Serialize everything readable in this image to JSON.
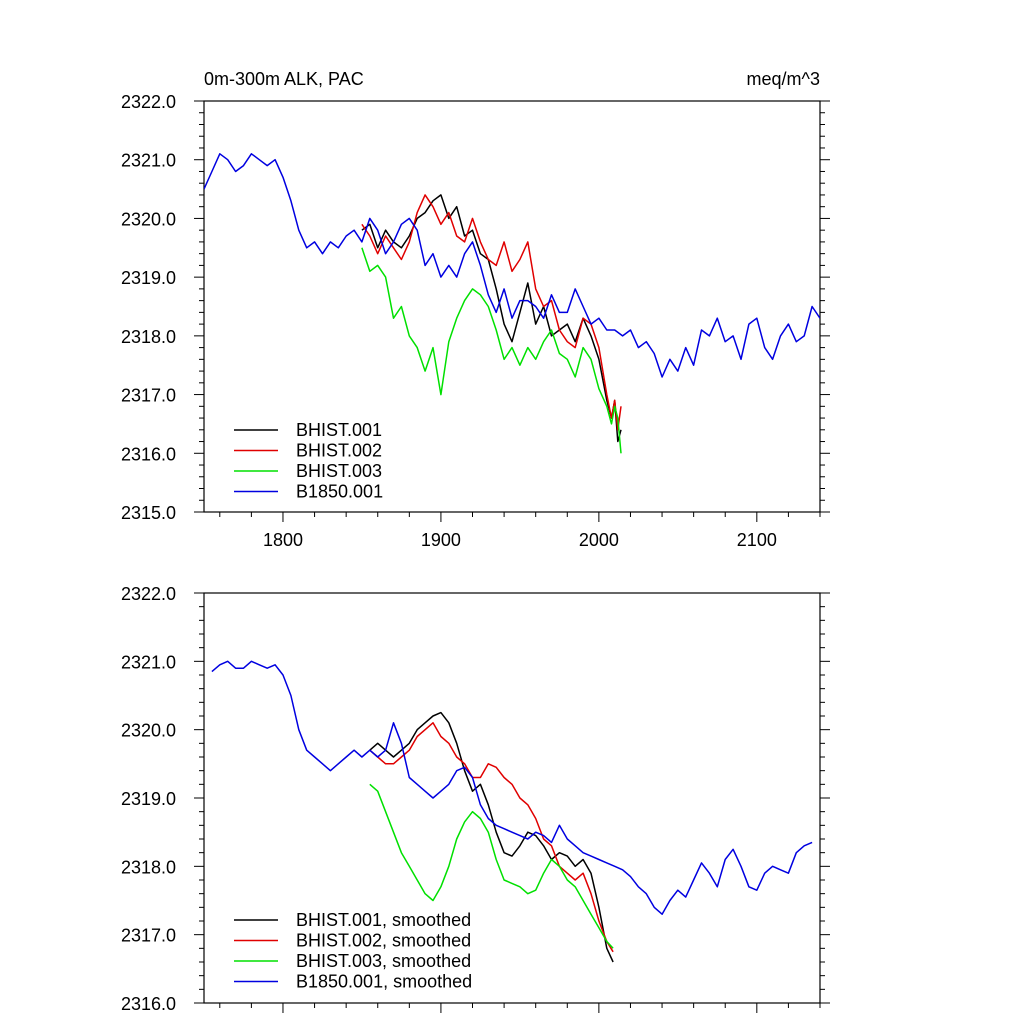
{
  "colors": {
    "black": "#000000",
    "red": "#e00000",
    "green": "#00e000",
    "blue": "#0000e0"
  },
  "chart_data": [
    {
      "type": "line",
      "title": "0m-300m ALK, PAC",
      "units_label": "meq/m^3",
      "xlim": [
        1750,
        2140
      ],
      "ylim": [
        2315,
        2322
      ],
      "x_ticks": [
        1800,
        1900,
        2000,
        2100
      ],
      "x_tick_labels": [
        "1800",
        "1900",
        "2000",
        "2100"
      ],
      "y_ticks": [
        2315,
        2316,
        2317,
        2318,
        2319,
        2320,
        2321,
        2322
      ],
      "y_tick_labels": [
        "2315.0",
        "2316.0",
        "2317.0",
        "2318.0",
        "2319.0",
        "2320.0",
        "2321.0",
        "2322.0"
      ],
      "legend_position": "bottom-left",
      "series": [
        {
          "name": "BHIST.001",
          "color": "#000000",
          "x": [
            1850,
            1855,
            1860,
            1865,
            1870,
            1875,
            1880,
            1885,
            1890,
            1895,
            1900,
            1905,
            1910,
            1915,
            1920,
            1925,
            1930,
            1935,
            1940,
            1945,
            1950,
            1955,
            1960,
            1965,
            1970,
            1975,
            1980,
            1985,
            1990,
            1995,
            2000,
            2005,
            2008,
            2010,
            2012,
            2014
          ],
          "y": [
            2319.8,
            2319.9,
            2319.5,
            2319.8,
            2319.6,
            2319.5,
            2319.7,
            2320.0,
            2320.1,
            2320.3,
            2320.4,
            2320.0,
            2320.2,
            2319.7,
            2319.8,
            2319.4,
            2319.3,
            2318.8,
            2318.2,
            2317.9,
            2318.4,
            2318.9,
            2318.2,
            2318.5,
            2318.0,
            2318.1,
            2318.2,
            2317.9,
            2318.3,
            2318.0,
            2317.6,
            2316.9,
            2316.6,
            2316.9,
            2316.2,
            2316.4
          ]
        },
        {
          "name": "BHIST.002",
          "color": "#e00000",
          "x": [
            1850,
            1855,
            1860,
            1865,
            1870,
            1875,
            1880,
            1885,
            1890,
            1895,
            1900,
            1905,
            1910,
            1915,
            1920,
            1925,
            1930,
            1935,
            1940,
            1945,
            1950,
            1955,
            1960,
            1965,
            1970,
            1975,
            1980,
            1985,
            1990,
            1995,
            2000,
            2005,
            2008,
            2010,
            2012,
            2014
          ],
          "y": [
            2319.9,
            2319.7,
            2319.4,
            2319.7,
            2319.5,
            2319.3,
            2319.6,
            2320.1,
            2320.4,
            2320.2,
            2319.9,
            2320.1,
            2319.7,
            2319.6,
            2320.0,
            2319.6,
            2319.3,
            2319.2,
            2319.6,
            2319.1,
            2319.3,
            2319.6,
            2318.8,
            2318.5,
            2318.6,
            2318.1,
            2317.9,
            2317.8,
            2318.3,
            2318.2,
            2317.8,
            2317.0,
            2316.6,
            2316.9,
            2316.4,
            2316.8
          ]
        },
        {
          "name": "BHIST.003",
          "color": "#00e000",
          "x": [
            1850,
            1855,
            1860,
            1865,
            1870,
            1875,
            1880,
            1885,
            1890,
            1895,
            1900,
            1905,
            1910,
            1915,
            1920,
            1925,
            1930,
            1935,
            1940,
            1945,
            1950,
            1955,
            1960,
            1965,
            1970,
            1975,
            1980,
            1985,
            1990,
            1995,
            2000,
            2005,
            2008,
            2010,
            2012,
            2014
          ],
          "y": [
            2319.5,
            2319.1,
            2319.2,
            2319.0,
            2318.3,
            2318.5,
            2318.0,
            2317.8,
            2317.4,
            2317.8,
            2317.0,
            2317.9,
            2318.3,
            2318.6,
            2318.8,
            2318.7,
            2318.5,
            2318.1,
            2317.6,
            2317.8,
            2317.5,
            2317.8,
            2317.6,
            2317.9,
            2318.1,
            2317.7,
            2317.6,
            2317.3,
            2317.8,
            2317.6,
            2317.1,
            2316.8,
            2316.5,
            2316.8,
            2316.6,
            2316.0
          ]
        },
        {
          "name": "B1850.001",
          "color": "#0000e0",
          "x": [
            1750,
            1755,
            1760,
            1765,
            1770,
            1775,
            1780,
            1785,
            1790,
            1795,
            1800,
            1805,
            1810,
            1815,
            1820,
            1825,
            1830,
            1835,
            1840,
            1845,
            1850,
            1855,
            1860,
            1865,
            1870,
            1875,
            1880,
            1885,
            1890,
            1895,
            1900,
            1905,
            1910,
            1915,
            1920,
            1925,
            1930,
            1935,
            1940,
            1945,
            1950,
            1955,
            1960,
            1965,
            1970,
            1975,
            1980,
            1985,
            1990,
            1995,
            2000,
            2005,
            2010,
            2015,
            2020,
            2025,
            2030,
            2035,
            2040,
            2045,
            2050,
            2055,
            2060,
            2065,
            2070,
            2075,
            2080,
            2085,
            2090,
            2095,
            2100,
            2105,
            2110,
            2115,
            2120,
            2125,
            2130,
            2135,
            2140
          ],
          "y": [
            2320.5,
            2320.8,
            2321.1,
            2321.0,
            2320.8,
            2320.9,
            2321.1,
            2321.0,
            2320.9,
            2321.0,
            2320.7,
            2320.3,
            2319.8,
            2319.5,
            2319.6,
            2319.4,
            2319.6,
            2319.5,
            2319.7,
            2319.8,
            2319.6,
            2320.0,
            2319.8,
            2319.4,
            2319.6,
            2319.9,
            2320.0,
            2319.8,
            2319.2,
            2319.4,
            2319.0,
            2319.2,
            2319.0,
            2319.4,
            2319.6,
            2319.2,
            2318.7,
            2318.4,
            2318.8,
            2318.3,
            2318.6,
            2318.6,
            2318.5,
            2318.3,
            2318.7,
            2318.4,
            2318.4,
            2318.8,
            2318.5,
            2318.2,
            2318.3,
            2318.1,
            2318.1,
            2318.0,
            2318.1,
            2317.8,
            2317.9,
            2317.7,
            2317.3,
            2317.6,
            2317.4,
            2317.8,
            2317.5,
            2318.1,
            2318.0,
            2318.3,
            2317.9,
            2318.0,
            2317.6,
            2318.2,
            2318.3,
            2317.8,
            2317.6,
            2318.0,
            2318.2,
            2317.9,
            2318.0,
            2318.5,
            2318.3
          ]
        }
      ]
    },
    {
      "type": "line",
      "xlim": [
        1750,
        2140
      ],
      "ylim": [
        2316,
        2322
      ],
      "x_ticks": [
        1800,
        1900,
        2000,
        2100
      ],
      "y_ticks": [
        2316,
        2317,
        2318,
        2319,
        2320,
        2321,
        2322
      ],
      "y_tick_labels": [
        "2316.0",
        "2317.0",
        "2318.0",
        "2319.0",
        "2320.0",
        "2321.0",
        "2322.0"
      ],
      "legend_position": "bottom-left",
      "series": [
        {
          "name": "BHIST.001, smoothed",
          "color": "#000000",
          "x": [
            1855,
            1860,
            1865,
            1870,
            1875,
            1880,
            1885,
            1890,
            1895,
            1900,
            1905,
            1910,
            1915,
            1920,
            1925,
            1930,
            1935,
            1940,
            1945,
            1950,
            1955,
            1960,
            1965,
            1970,
            1975,
            1980,
            1985,
            1990,
            1995,
            2000,
            2005,
            2009
          ],
          "y": [
            2319.7,
            2319.8,
            2319.7,
            2319.6,
            2319.7,
            2319.8,
            2320.0,
            2320.1,
            2320.2,
            2320.25,
            2320.1,
            2319.8,
            2319.4,
            2319.1,
            2319.2,
            2318.9,
            2318.5,
            2318.2,
            2318.15,
            2318.3,
            2318.5,
            2318.45,
            2318.3,
            2318.1,
            2318.2,
            2318.15,
            2318.0,
            2318.1,
            2317.9,
            2317.4,
            2316.8,
            2316.6
          ]
        },
        {
          "name": "BHIST.002, smoothed",
          "color": "#e00000",
          "x": [
            1855,
            1860,
            1865,
            1870,
            1875,
            1880,
            1885,
            1890,
            1895,
            1900,
            1905,
            1910,
            1915,
            1920,
            1925,
            1930,
            1935,
            1940,
            1945,
            1950,
            1955,
            1960,
            1965,
            1970,
            1975,
            1980,
            1985,
            1990,
            1995,
            2000,
            2005,
            2009
          ],
          "y": [
            2319.7,
            2319.6,
            2319.5,
            2319.5,
            2319.6,
            2319.7,
            2319.9,
            2320.0,
            2320.1,
            2319.9,
            2319.8,
            2319.6,
            2319.5,
            2319.3,
            2319.3,
            2319.5,
            2319.45,
            2319.3,
            2319.2,
            2319.0,
            2318.9,
            2318.7,
            2318.4,
            2318.3,
            2318.0,
            2317.9,
            2317.8,
            2317.9,
            2317.6,
            2317.2,
            2316.9,
            2316.75
          ]
        },
        {
          "name": "BHIST.003, smoothed",
          "color": "#00e000",
          "x": [
            1855,
            1860,
            1865,
            1870,
            1875,
            1880,
            1885,
            1890,
            1895,
            1900,
            1905,
            1910,
            1915,
            1920,
            1925,
            1930,
            1935,
            1940,
            1945,
            1950,
            1955,
            1960,
            1965,
            1970,
            1975,
            1980,
            1985,
            1990,
            1995,
            2000,
            2005,
            2009
          ],
          "y": [
            2319.2,
            2319.1,
            2318.8,
            2318.5,
            2318.2,
            2318.0,
            2317.8,
            2317.6,
            2317.5,
            2317.7,
            2318.0,
            2318.4,
            2318.65,
            2318.8,
            2318.7,
            2318.5,
            2318.1,
            2317.8,
            2317.75,
            2317.7,
            2317.6,
            2317.65,
            2317.9,
            2318.1,
            2318.0,
            2317.8,
            2317.7,
            2317.5,
            2317.3,
            2317.1,
            2316.9,
            2316.8
          ]
        },
        {
          "name": "B1850.001, smoothed",
          "color": "#0000e0",
          "x": [
            1755,
            1760,
            1765,
            1770,
            1775,
            1780,
            1785,
            1790,
            1795,
            1800,
            1805,
            1810,
            1815,
            1820,
            1825,
            1830,
            1835,
            1840,
            1845,
            1850,
            1855,
            1860,
            1865,
            1870,
            1875,
            1880,
            1885,
            1890,
            1895,
            1900,
            1905,
            1910,
            1915,
            1920,
            1925,
            1930,
            1935,
            1940,
            1945,
            1950,
            1955,
            1960,
            1965,
            1970,
            1975,
            1980,
            1985,
            1990,
            1995,
            2000,
            2005,
            2010,
            2015,
            2020,
            2025,
            2030,
            2035,
            2040,
            2045,
            2050,
            2055,
            2060,
            2065,
            2070,
            2075,
            2080,
            2085,
            2090,
            2095,
            2100,
            2105,
            2110,
            2115,
            2120,
            2125,
            2130,
            2135
          ],
          "y": [
            2320.85,
            2320.95,
            2321.0,
            2320.9,
            2320.9,
            2321.0,
            2320.95,
            2320.9,
            2320.95,
            2320.8,
            2320.5,
            2320.0,
            2319.7,
            2319.6,
            2319.5,
            2319.4,
            2319.5,
            2319.6,
            2319.7,
            2319.6,
            2319.7,
            2319.6,
            2319.7,
            2320.1,
            2319.8,
            2319.3,
            2319.2,
            2319.1,
            2319.0,
            2319.1,
            2319.2,
            2319.4,
            2319.45,
            2319.3,
            2318.9,
            2318.7,
            2318.6,
            2318.55,
            2318.5,
            2318.45,
            2318.4,
            2318.5,
            2318.45,
            2318.35,
            2318.6,
            2318.4,
            2318.3,
            2318.2,
            2318.15,
            2318.1,
            2318.05,
            2318.0,
            2317.95,
            2317.85,
            2317.7,
            2317.6,
            2317.4,
            2317.3,
            2317.5,
            2317.65,
            2317.55,
            2317.8,
            2318.05,
            2317.9,
            2317.7,
            2318.1,
            2318.25,
            2318.0,
            2317.7,
            2317.65,
            2317.9,
            2318.0,
            2317.95,
            2317.9,
            2318.2,
            2318.3,
            2318.35
          ]
        }
      ]
    }
  ]
}
